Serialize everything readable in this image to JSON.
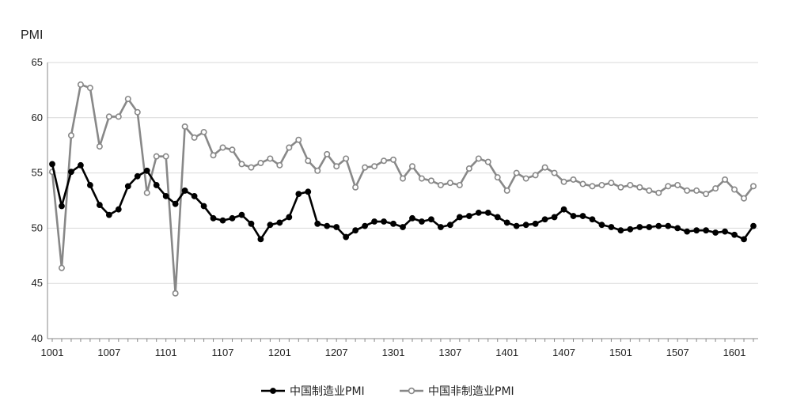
{
  "chart_data": {
    "type": "line",
    "ylabel": "PMI",
    "ylim": [
      40,
      65
    ],
    "yticks": [
      40,
      45,
      50,
      55,
      60,
      65
    ],
    "xtick_labels": [
      "1001",
      "1007",
      "1101",
      "1107",
      "1201",
      "1207",
      "1301",
      "1307",
      "1401",
      "1407",
      "1501",
      "1507",
      "1601"
    ],
    "grid": "horizontal",
    "legend_position": "bottom",
    "x": [
      "1001",
      "1002",
      "1003",
      "1004",
      "1005",
      "1006",
      "1007",
      "1008",
      "1009",
      "1010",
      "1011",
      "1012",
      "1101",
      "1102",
      "1103",
      "1104",
      "1105",
      "1106",
      "1107",
      "1108",
      "1109",
      "1110",
      "1111",
      "1112",
      "1201",
      "1202",
      "1203",
      "1204",
      "1205",
      "1206",
      "1207",
      "1208",
      "1209",
      "1210",
      "1211",
      "1212",
      "1301",
      "1302",
      "1303",
      "1304",
      "1305",
      "1306",
      "1307",
      "1308",
      "1309",
      "1310",
      "1311",
      "1312",
      "1401",
      "1402",
      "1403",
      "1404",
      "1405",
      "1406",
      "1407",
      "1408",
      "1409",
      "1410",
      "1411",
      "1412",
      "1501",
      "1502",
      "1503",
      "1504",
      "1505",
      "1506",
      "1507",
      "1508",
      "1509",
      "1510",
      "1511",
      "1512",
      "1601",
      "1602",
      "1603"
    ],
    "series": [
      {
        "name": "中国制造业PMI",
        "color": "#000000",
        "marker": "filled-circle",
        "values": [
          55.8,
          52.0,
          55.1,
          55.7,
          53.9,
          52.1,
          51.2,
          51.7,
          53.8,
          54.7,
          55.2,
          53.9,
          52.9,
          52.2,
          53.4,
          52.9,
          52.0,
          50.9,
          50.7,
          50.9,
          51.2,
          50.4,
          49.0,
          50.3,
          50.5,
          51.0,
          53.1,
          53.3,
          50.4,
          50.2,
          50.1,
          49.2,
          49.8,
          50.2,
          50.6,
          50.6,
          50.4,
          50.1,
          50.9,
          50.6,
          50.8,
          50.1,
          50.3,
          51.0,
          51.1,
          51.4,
          51.4,
          51.0,
          50.5,
          50.2,
          50.3,
          50.4,
          50.8,
          51.0,
          51.7,
          51.1,
          51.1,
          50.8,
          50.3,
          50.1,
          49.8,
          49.9,
          50.1,
          50.1,
          50.2,
          50.2,
          50.0,
          49.7,
          49.8,
          49.8,
          49.6,
          49.7,
          49.4,
          49.0,
          50.2
        ]
      },
      {
        "name": "中国非制造业PMI",
        "color": "#888888",
        "marker": "hollow-circle",
        "values": [
          55.1,
          46.4,
          58.4,
          63.0,
          62.7,
          57.4,
          60.1,
          60.1,
          61.7,
          60.5,
          53.2,
          56.5,
          56.5,
          44.1,
          59.2,
          58.2,
          58.7,
          56.6,
          57.3,
          57.1,
          55.8,
          55.5,
          55.9,
          56.3,
          55.7,
          57.3,
          58.0,
          56.1,
          55.2,
          56.7,
          55.6,
          56.3,
          53.7,
          55.5,
          55.6,
          56.1,
          56.2,
          54.5,
          55.6,
          54.5,
          54.3,
          53.9,
          54.1,
          53.9,
          55.4,
          56.3,
          56.0,
          54.6,
          53.4,
          55.0,
          54.5,
          54.8,
          55.5,
          55.0,
          54.2,
          54.4,
          54.0,
          53.8,
          53.9,
          54.1,
          53.7,
          53.9,
          53.7,
          53.4,
          53.2,
          53.8,
          53.9,
          53.4,
          53.4,
          53.1,
          53.6,
          54.4,
          53.5,
          52.7,
          53.8
        ]
      }
    ]
  }
}
